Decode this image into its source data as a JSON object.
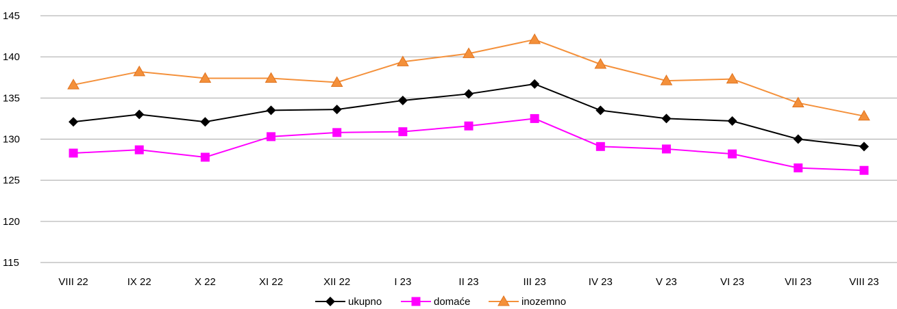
{
  "chart_data": {
    "type": "line",
    "title": "",
    "xlabel": "",
    "ylabel": "",
    "categories": [
      "VIII 22",
      "IX 22",
      "X 22",
      "XI 22",
      "XII 22",
      "I 23",
      "II 23",
      "III 23",
      "IV 23",
      "V 23",
      "VI 23",
      "VII 23",
      "VIII 23"
    ],
    "ylim": [
      115,
      145
    ],
    "yticks": [
      115,
      120,
      125,
      130,
      135,
      140,
      145
    ],
    "ytick_labels": [
      "115",
      "120",
      "125",
      "130",
      "135",
      "140",
      "145"
    ],
    "grid": true,
    "legend_position": "bottom",
    "series": [
      {
        "name": "ukupno",
        "marker": "diamond",
        "color": "#000000",
        "values": [
          132.1,
          133.0,
          132.1,
          133.5,
          133.6,
          134.7,
          135.5,
          136.7,
          133.5,
          132.5,
          132.2,
          130.0,
          129.1
        ]
      },
      {
        "name": "domaće",
        "marker": "square",
        "color": "#ff00ff",
        "values": [
          128.3,
          128.7,
          127.8,
          130.3,
          130.8,
          130.9,
          131.6,
          132.5,
          129.1,
          128.8,
          128.2,
          126.5,
          126.2
        ]
      },
      {
        "name": "inozemno",
        "marker": "triangle",
        "color": "#f4903a",
        "values": [
          136.6,
          138.2,
          137.4,
          137.4,
          136.9,
          139.4,
          140.4,
          142.1,
          139.1,
          137.1,
          137.3,
          134.4,
          132.8
        ]
      }
    ]
  }
}
